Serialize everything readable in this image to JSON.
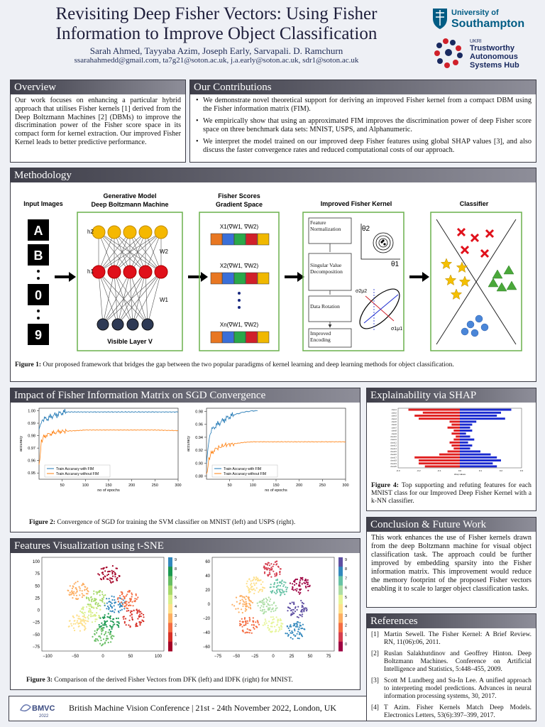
{
  "header": {
    "title_line1": "Revisiting Deep Fisher Vectors: Using Fisher",
    "title_line2": "Information to Improve Object Classification",
    "authors": "Sarah Ahmed, Tayyaba Azim, Joseph Early, Sarvapali. D. Ramchurn",
    "emails": "ssarahahmedd@gmail.com, ta7g21@soton.ac.uk, j.a.early@soton.ac.uk, sdr1@soton.ac.uk",
    "logo1_line1": "University of",
    "logo1_line2": "Southampton",
    "logo2_line0": "UKRI",
    "logo2_line1": "Trustworthy",
    "logo2_line2": "Autonomous",
    "logo2_line3": "Systems Hub"
  },
  "overview": {
    "title": "Overview",
    "text": "Our work focuses on enhancing a particular hybrid approach that utilises Fisher kernels [1] derived from the Deep Boltzmann Machines [2] (DBMs) to improve the discrimination power of the Fisher score space in its compact form for kernel extraction. Our improved Fisher Kernel leads to better predictive performance."
  },
  "contributions": {
    "title": "Our Contributions",
    "items": [
      "We demonstrate novel theoretical support for deriving an improved Fisher kernel from a compact DBM using the Fisher information matrix (FIM).",
      "We empirically show that using an approximated FIM improves the discrimination power of deep Fisher score space on three benchmark data sets: MNIST, USPS, and Alphanumeric.",
      "We interpret the model trained on our improved deep Fisher features using global SHAP values [3], and also discuss the faster convergence rates and reduced computational costs of our approach."
    ]
  },
  "methodology": {
    "title": "Methodology",
    "col_input": "Input Images",
    "col_gen_1": "Generative Model",
    "col_gen_2": "Deep Boltzmann Machine",
    "col_fs_1": "Fisher Scores",
    "col_fs_2": "Gradient Space",
    "col_ifk": "Improved Fisher Kernel",
    "col_cls": "Classifier",
    "inputs": [
      "A",
      "B",
      "0",
      "9"
    ],
    "h2": "h2",
    "h1": "h1",
    "w2": "W2",
    "w1": "W1",
    "visible": "Visible Layer V",
    "x1": "X1(∇W1, ∇W2)",
    "x2": "X2(∇W1, ∇W2)",
    "xn": "Xn(∇W1, ∇W2)",
    "step1": "Feature Normalization",
    "step2": "Singular Value Decomposition",
    "step3": "Data Rotation",
    "step4": "Improved Encoding",
    "theta1": "θ1",
    "theta2": "θ2",
    "sigma2": "σ2μ2",
    "sigma1": "σ1μ1",
    "caption_label": "Figure 1:",
    "caption": "Our proposed framework that bridges the gap between the two popular paradigms of kernel learning and deep learning methods for object classification."
  },
  "sgd": {
    "title": "Impact of Fisher Information Matrix on SGD Convergence",
    "caption_label": "Figure 2:",
    "caption": "Convergence of SGD for training the SVM classifier on MNIST (left) and USPS (right).",
    "ylabel": "accuracy",
    "xlabel": "no of epochs",
    "legend_with": "Train Accuracy with FIM",
    "legend_without": "Train Accuracy without FIM",
    "left_yticks": [
      "1.00",
      "0.99",
      "0.98",
      "0.97",
      "0.96",
      "0.95"
    ],
    "right_yticks": [
      "0.98",
      "0.96",
      "0.94",
      "0.92",
      "0.90",
      "0.88"
    ],
    "xticks": [
      "50",
      "100",
      "150",
      "200",
      "250",
      "300"
    ]
  },
  "chart_data": [
    {
      "type": "line",
      "title": "",
      "xlabel": "no of epochs",
      "ylabel": "accuracy",
      "ylim": [
        0.945,
        1.002
      ],
      "xlim": [
        0,
        300
      ],
      "series": [
        {
          "name": "Train Accuracy with FIM",
          "color": "#1f77b4",
          "x": [
            0,
            5,
            10,
            20,
            30,
            40,
            50,
            60,
            80,
            100,
            150,
            200,
            250,
            300
          ],
          "y": [
            0.985,
            0.991,
            0.993,
            0.994,
            0.996,
            0.997,
            0.9985,
            0.999,
            0.999,
            0.999,
            0.999,
            0.999,
            0.999,
            0.999
          ]
        },
        {
          "name": "Train Accuracy without FIM",
          "color": "#ff7f0e",
          "x": [
            0,
            5,
            10,
            20,
            30,
            40,
            50,
            80,
            100,
            150,
            200,
            250,
            300
          ],
          "y": [
            0.955,
            0.975,
            0.979,
            0.981,
            0.982,
            0.983,
            0.9835,
            0.984,
            0.9845,
            0.9845,
            0.9845,
            0.9845,
            0.984
          ]
        }
      ]
    },
    {
      "type": "line",
      "title": "",
      "xlabel": "no of epochs",
      "ylabel": "accuracy",
      "ylim": [
        0.875,
        0.985
      ],
      "xlim": [
        0,
        300
      ],
      "series": [
        {
          "name": "Train Accuracy with FIM",
          "color": "#1f77b4",
          "x": [
            0,
            5,
            10,
            20,
            30,
            40,
            50,
            60,
            70,
            80,
            90,
            100,
            110
          ],
          "y": [
            0.9,
            0.935,
            0.95,
            0.958,
            0.963,
            0.968,
            0.972,
            0.975,
            0.977,
            0.979,
            0.98,
            0.981,
            0.981
          ]
        },
        {
          "name": "Train Accuracy without FIM",
          "color": "#ff7f0e",
          "x": [
            0,
            5,
            10,
            20,
            40,
            60,
            80,
            100,
            150,
            200,
            250,
            300
          ],
          "y": [
            0.88,
            0.905,
            0.915,
            0.922,
            0.928,
            0.93,
            0.932,
            0.933,
            0.933,
            0.933,
            0.933,
            0.933
          ]
        }
      ]
    },
    {
      "type": "bar",
      "title": "",
      "xlabel": "shap values",
      "categories": [
        "class1",
        "class2",
        "class3",
        "class4",
        "class5",
        "class6",
        "class7",
        "class8",
        "class9",
        "class10",
        "class11",
        "class12",
        "class13",
        "class14",
        "class15",
        "class16",
        "class17",
        "class18",
        "class19",
        "class20"
      ],
      "series": [
        {
          "name": "",
          "color": "#e02020",
          "values": [
            -0.25,
            -0.18,
            -0.22,
            -0.2,
            -0.05,
            -0.04,
            -0.06,
            -0.03,
            -0.04,
            -0.02,
            -0.03,
            -0.05,
            -0.04,
            -0.03,
            -0.06,
            -0.1,
            -0.22,
            -0.2,
            -0.2,
            -0.17
          ]
        },
        {
          "name": "",
          "color": "#1a2ad0",
          "values": [
            0.25,
            0.2,
            0.18,
            0.22,
            0.08,
            0.06,
            0.05,
            0.06,
            0.03,
            0.05,
            0.07,
            0.04,
            0.06,
            0.05,
            0.1,
            0.15,
            0.18,
            0.2,
            0.16,
            0.18
          ]
        }
      ]
    }
  ],
  "tsne": {
    "title": "Features Visualization using t-SNE",
    "caption_label": "Figure 3:",
    "caption": "Comparison of the derived Fisher Vectors from DFK (left) and IDFK (right) for MNIST.",
    "left_yticks": [
      "100",
      "75",
      "50",
      "25",
      "0",
      "−25",
      "−50",
      "−75"
    ],
    "left_xticks": [
      "−100",
      "−50",
      "0",
      "50",
      "100"
    ],
    "right_yticks": [
      "60",
      "40",
      "20",
      "0",
      "−20",
      "−40",
      "−60"
    ],
    "right_xticks": [
      "−75",
      "−50",
      "−25",
      "0",
      "25",
      "50",
      "75"
    ],
    "cbar_ticks": [
      "9",
      "8",
      "7",
      "6",
      "5",
      "4",
      "3",
      "2",
      "1",
      "0"
    ]
  },
  "shap": {
    "title": "Explainability via SHAP",
    "caption_label": "Figure 4:",
    "caption": "Top supporting and refuting features for each MNIST class for our Improved Deep Fisher Kernel with a k-NN classifier."
  },
  "conclusion": {
    "title": "Conclusion & Future Work",
    "text": "This work enhances the use of Fisher kernels drawn from the deep Boltzmann machine for visual object classification task. The approach could be further improved by embedding sparsity into the Fisher information matrix. This improvement would reduce the memory footprint of the proposed Fisher vectors enabling it to scale to larger object classification tasks."
  },
  "references": {
    "title": "References",
    "items": [
      {
        "n": "[1]",
        "text": "Martin Sewell. The Fisher Kernel: A Brief Review. RN, 11(06):06, 2011."
      },
      {
        "n": "[2]",
        "text": "Ruslan Salakhutdinov and Geoffrey Hinton. Deep Boltzmann Machines. Conference on Artificial Intelligence and Statistics, 5:448–455, 2009."
      },
      {
        "n": "[3]",
        "text": "Scott M Lundberg and Su-In Lee. A unified approach to interpreting model predictions. Advances in neural information processing systems, 30, 2017."
      },
      {
        "n": "[4]",
        "text": "T Azim. Fisher Kernels Match Deep Models. Electronics Letters, 53(6):397–399, 2017."
      }
    ]
  },
  "footer": {
    "logo": "BMVC",
    "logo_year": "2022",
    "text": "British Machine Vision Conference | 21st - 24th November 2022, London, UK"
  },
  "colors": {
    "header_dark": "#3f3f4a",
    "soton_blue": "#005c84",
    "tas_red": "#d0202a",
    "tas_blue": "#1a2a60"
  }
}
